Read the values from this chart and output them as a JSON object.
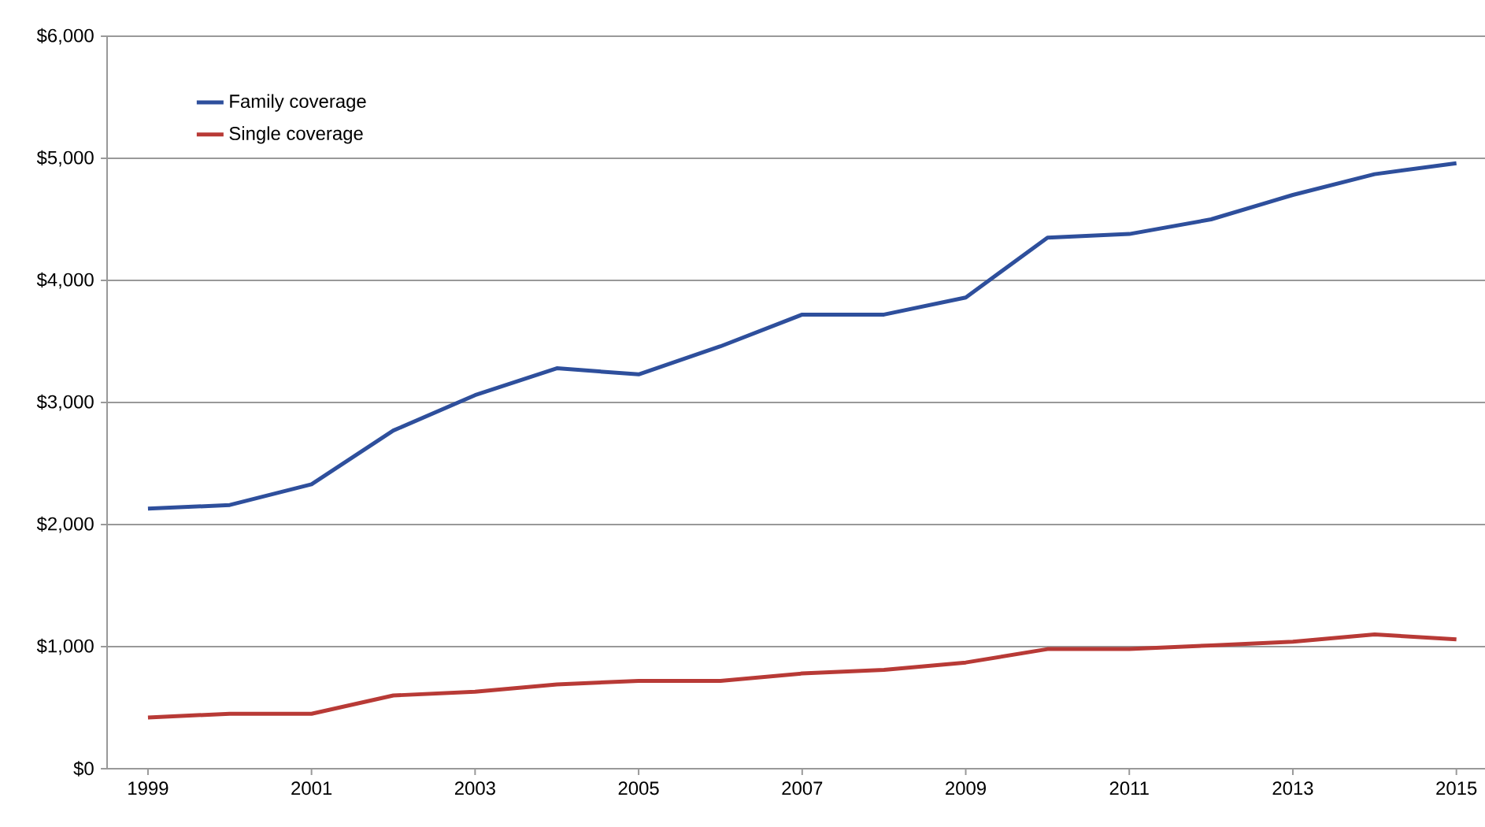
{
  "chart_data": {
    "type": "line",
    "x": [
      1999,
      2000,
      2001,
      2002,
      2003,
      2004,
      2005,
      2006,
      2007,
      2008,
      2009,
      2010,
      2011,
      2012,
      2013,
      2014,
      2015
    ],
    "series": [
      {
        "name": "Family coverage",
        "color": "#2e4f9c",
        "values": [
          2130,
          2160,
          2330,
          2770,
          3060,
          3280,
          3230,
          3460,
          3720,
          3720,
          3860,
          4350,
          4380,
          4500,
          4700,
          4870,
          4960
        ]
      },
      {
        "name": "Single coverage",
        "color": "#b83a36",
        "values": [
          420,
          450,
          450,
          600,
          630,
          690,
          720,
          720,
          780,
          810,
          870,
          980,
          980,
          1010,
          1040,
          1100,
          1060
        ]
      }
    ],
    "xlim": [
      1998.5,
      2015.35
    ],
    "ylim": [
      0,
      6000
    ],
    "xticks": [
      1999,
      2001,
      2003,
      2005,
      2007,
      2009,
      2011,
      2013,
      2015
    ],
    "yticks": [
      {
        "value": 0,
        "label": "$0"
      },
      {
        "value": 1000,
        "label": "$1,000"
      },
      {
        "value": 2000,
        "label": "$2,000"
      },
      {
        "value": 3000,
        "label": "$3,000"
      },
      {
        "value": 4000,
        "label": "$4,000"
      },
      {
        "value": 5000,
        "label": "$5,000"
      },
      {
        "value": 6000,
        "label": "$6,000"
      }
    ],
    "grid": "y",
    "legend": "top left",
    "marker": "none",
    "line_style": "solid"
  }
}
